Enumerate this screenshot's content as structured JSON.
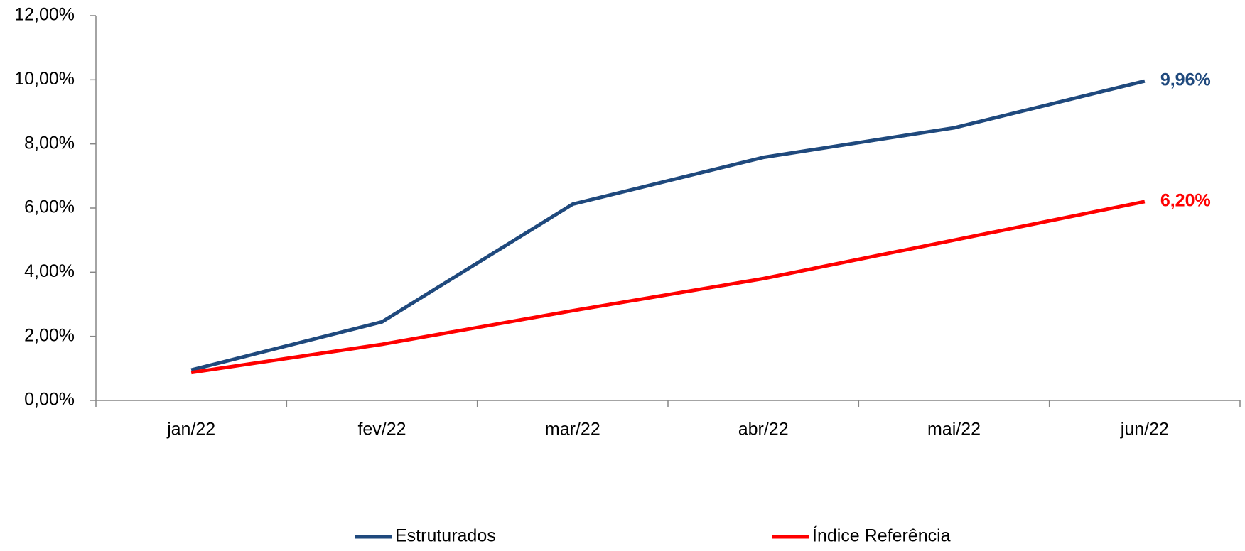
{
  "chart_data": {
    "type": "line",
    "categories": [
      "jan/22",
      "fev/22",
      "mar/22",
      "abr/22",
      "mai/22",
      "jun/22"
    ],
    "series": [
      {
        "name": "Estruturados",
        "color": "#1f497d",
        "values": [
          0.95,
          2.45,
          6.12,
          7.58,
          8.5,
          9.96
        ],
        "value_labels": [
          null,
          null,
          null,
          null,
          null,
          "9,96%"
        ]
      },
      {
        "name": "Índice Referência",
        "color": "#ff0000",
        "values": [
          0.87,
          1.75,
          2.8,
          3.8,
          5.0,
          6.2
        ],
        "value_labels": [
          null,
          null,
          null,
          null,
          null,
          "6,20%"
        ]
      }
    ],
    "ylim": [
      0,
      12
    ],
    "yticks": [
      {
        "value": 0,
        "label": "0,00%"
      },
      {
        "value": 2,
        "label": "2,00%"
      },
      {
        "value": 4,
        "label": "4,00%"
      },
      {
        "value": 6,
        "label": "6,00%"
      },
      {
        "value": 8,
        "label": "8,00%"
      },
      {
        "value": 10,
        "label": "10,00%"
      },
      {
        "value": 12,
        "label": "12,00%"
      }
    ],
    "grid": false,
    "legend": "bottom"
  }
}
